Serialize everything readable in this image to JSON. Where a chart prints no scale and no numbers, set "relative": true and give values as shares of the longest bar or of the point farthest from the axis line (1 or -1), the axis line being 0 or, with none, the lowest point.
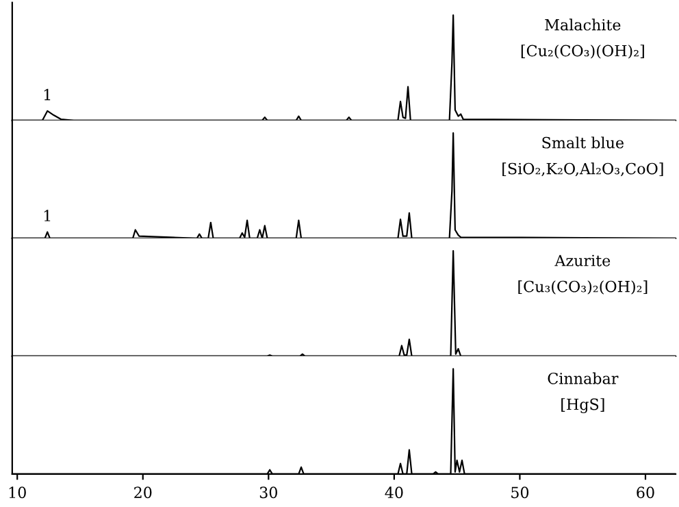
{
  "chart_data": [
    {
      "type": "line",
      "relative": true,
      "title": "Malachite",
      "subtitle": "[Cu₂(CO₃)(OH)₂]",
      "xlim": [
        9.6,
        62.4
      ],
      "tick_labels": false,
      "annotations": [
        {
          "text": "1",
          "x": 12.4,
          "y": 0.09
        }
      ],
      "series": [
        {
          "color": "#000000",
          "x": [
            9.6,
            12.0,
            12.4,
            12.9,
            13.5,
            14.5,
            29.5,
            29.7,
            29.9,
            32.2,
            32.4,
            32.6,
            36.2,
            36.4,
            36.6,
            40.3,
            40.5,
            40.7,
            40.9,
            41.1,
            41.3,
            44.4,
            44.6,
            44.7,
            44.85,
            45.1,
            45.3,
            45.5,
            62.4
          ],
          "values": [
            0,
            0,
            0.09,
            0.05,
            0.01,
            0,
            0,
            0.03,
            0,
            0,
            0.04,
            0,
            0,
            0.03,
            0,
            0,
            0.18,
            0.03,
            0.02,
            0.32,
            0,
            0,
            0.55,
            1,
            0.1,
            0.04,
            0.06,
            0.01,
            0
          ]
        }
      ]
    },
    {
      "type": "line",
      "relative": true,
      "title": "Smalt blue",
      "subtitle": "[SiO₂,K₂O,Al₂O₃,CoO]",
      "xlim": [
        9.6,
        62.4
      ],
      "tick_labels": false,
      "annotations": [
        {
          "text": "1",
          "x": 12.4,
          "y": 0.06
        }
      ],
      "series": [
        {
          "color": "#000000",
          "x": [
            9.6,
            12.2,
            12.4,
            12.6,
            19.2,
            19.4,
            19.7,
            24.3,
            24.5,
            24.7,
            25.2,
            25.4,
            25.6,
            27.7,
            27.9,
            28.1,
            28.3,
            28.5,
            29.1,
            29.3,
            29.5,
            29.7,
            29.9,
            32.2,
            32.4,
            32.6,
            40.3,
            40.5,
            40.7,
            41.0,
            41.2,
            41.4,
            44.4,
            44.6,
            44.7,
            44.85,
            45.1,
            45.3,
            62.4
          ],
          "values": [
            0,
            0,
            0.06,
            0,
            0,
            0.08,
            0.02,
            0,
            0.04,
            0,
            0,
            0.15,
            0,
            0,
            0.05,
            0.01,
            0.17,
            0,
            0,
            0.08,
            0,
            0.12,
            0,
            0,
            0.17,
            0,
            0,
            0.18,
            0.02,
            0.02,
            0.24,
            0,
            0,
            0.45,
            1,
            0.08,
            0.03,
            0.01,
            0
          ]
        }
      ]
    },
    {
      "type": "line",
      "relative": true,
      "title": "Azurite",
      "subtitle": "[Cu₃(CO₃)₂(OH)₂]",
      "xlim": [
        9.6,
        62.4
      ],
      "tick_labels": false,
      "series": [
        {
          "color": "#000000",
          "x": [
            9.6,
            29.9,
            30.1,
            30.3,
            32.5,
            32.7,
            32.9,
            40.4,
            40.6,
            40.8,
            41.0,
            41.2,
            41.4,
            44.5,
            44.7,
            44.9,
            45.1,
            45.3,
            62.4
          ],
          "values": [
            0,
            0,
            0.01,
            0,
            0,
            0.02,
            0,
            0,
            0.1,
            0.01,
            0.01,
            0.16,
            0,
            0,
            1,
            0.02,
            0.07,
            0,
            0
          ]
        }
      ]
    },
    {
      "type": "line",
      "relative": true,
      "title": "Cinnabar",
      "subtitle": "[HgS]",
      "xlim": [
        9.6,
        62.4
      ],
      "xticks": [
        10,
        20,
        30,
        40,
        50,
        60
      ],
      "tick_labels": "x",
      "series": [
        {
          "color": "#000000",
          "x": [
            9.6,
            29.9,
            30.1,
            30.3,
            32.4,
            32.6,
            32.8,
            40.3,
            40.5,
            40.7,
            41.0,
            41.2,
            41.4,
            43.1,
            43.3,
            43.5,
            44.5,
            44.7,
            44.85,
            45.0,
            45.2,
            45.4,
            45.6,
            62.4
          ],
          "values": [
            0,
            0,
            0.04,
            0,
            0,
            0.065,
            0,
            0,
            0.1,
            0,
            0,
            0.23,
            0,
            0,
            0.02,
            0,
            0,
            1,
            0.02,
            0.13,
            0.02,
            0.13,
            0,
            0
          ]
        }
      ]
    }
  ]
}
